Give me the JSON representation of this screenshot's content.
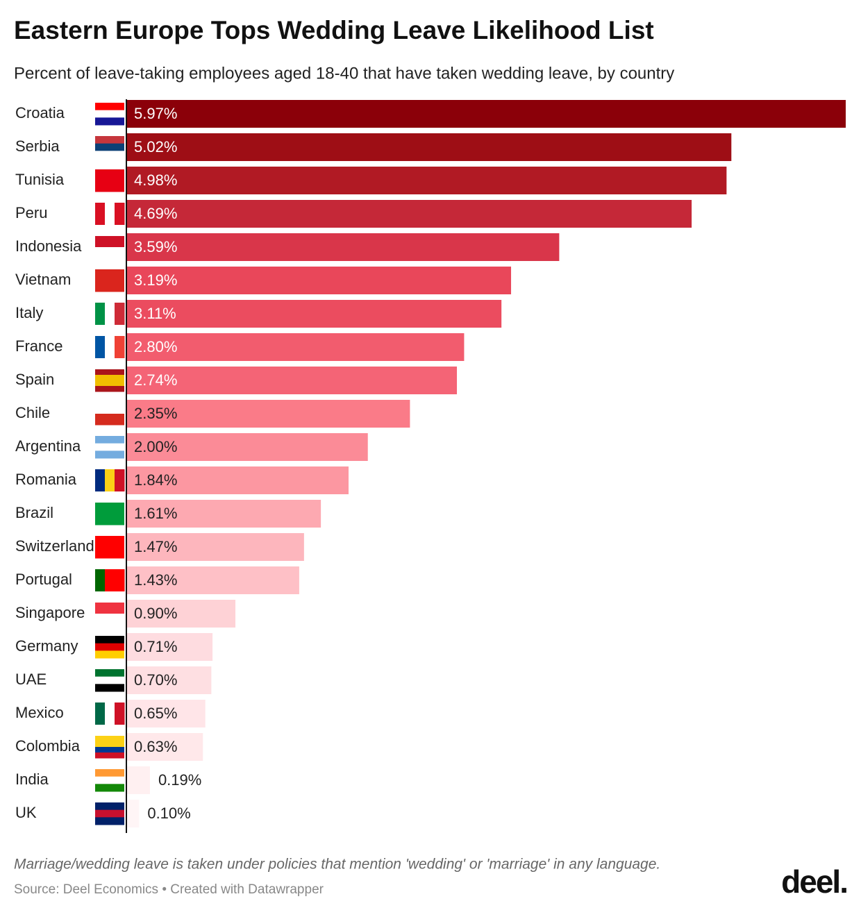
{
  "chart_data": {
    "type": "bar",
    "orientation": "horizontal",
    "title": "Eastern Europe Tops Wedding Leave Likelihood List",
    "subtitle": "Percent of leave-taking employees aged 18-40 that have taken wedding leave, by country",
    "categories": [
      "Croatia",
      "Serbia",
      "Tunisia",
      "Peru",
      "Indonesia",
      "Vietnam",
      "Italy",
      "France",
      "Spain",
      "Chile",
      "Argentina",
      "Romania",
      "Brazil",
      "Switzerland",
      "Portugal",
      "Singapore",
      "Germany",
      "UAE",
      "Mexico",
      "Colombia",
      "India",
      "UK"
    ],
    "values": [
      5.97,
      5.02,
      4.98,
      4.69,
      3.59,
      3.19,
      3.11,
      2.8,
      2.74,
      2.35,
      2.0,
      1.84,
      1.61,
      1.47,
      1.43,
      0.9,
      0.71,
      0.7,
      0.65,
      0.63,
      0.19,
      0.1
    ],
    "value_labels": [
      "5.97%",
      "5.02%",
      "4.98%",
      "4.69%",
      "3.59%",
      "3.19%",
      "3.11%",
      "2.80%",
      "2.74%",
      "2.35%",
      "2.00%",
      "1.84%",
      "1.61%",
      "1.47%",
      "1.43%",
      "0.90%",
      "0.71%",
      "0.70%",
      "0.65%",
      "0.63%",
      "0.19%",
      "0.10%"
    ],
    "colors": [
      "#8b0009",
      "#9e0e15",
      "#b11a24",
      "#c52838",
      "#d9364a",
      "#e9475a",
      "#eb4c5f",
      "#f25c6e",
      "#f46476",
      "#fa7b88",
      "#fb8b97",
      "#fc97a1",
      "#fda9b1",
      "#fdb6bd",
      "#fec0c6",
      "#fed2d6",
      "#fedce0",
      "#fedfe2",
      "#ffe5e8",
      "#ffe8ea",
      "#fff0f1",
      "#fff5f6"
    ],
    "note": "Marriage/wedding leave is taken under policies that mention 'wedding' or 'marriage' in any language.",
    "source": "Source: Deel Economics • Created with Datawrapper",
    "logo": "deel."
  }
}
